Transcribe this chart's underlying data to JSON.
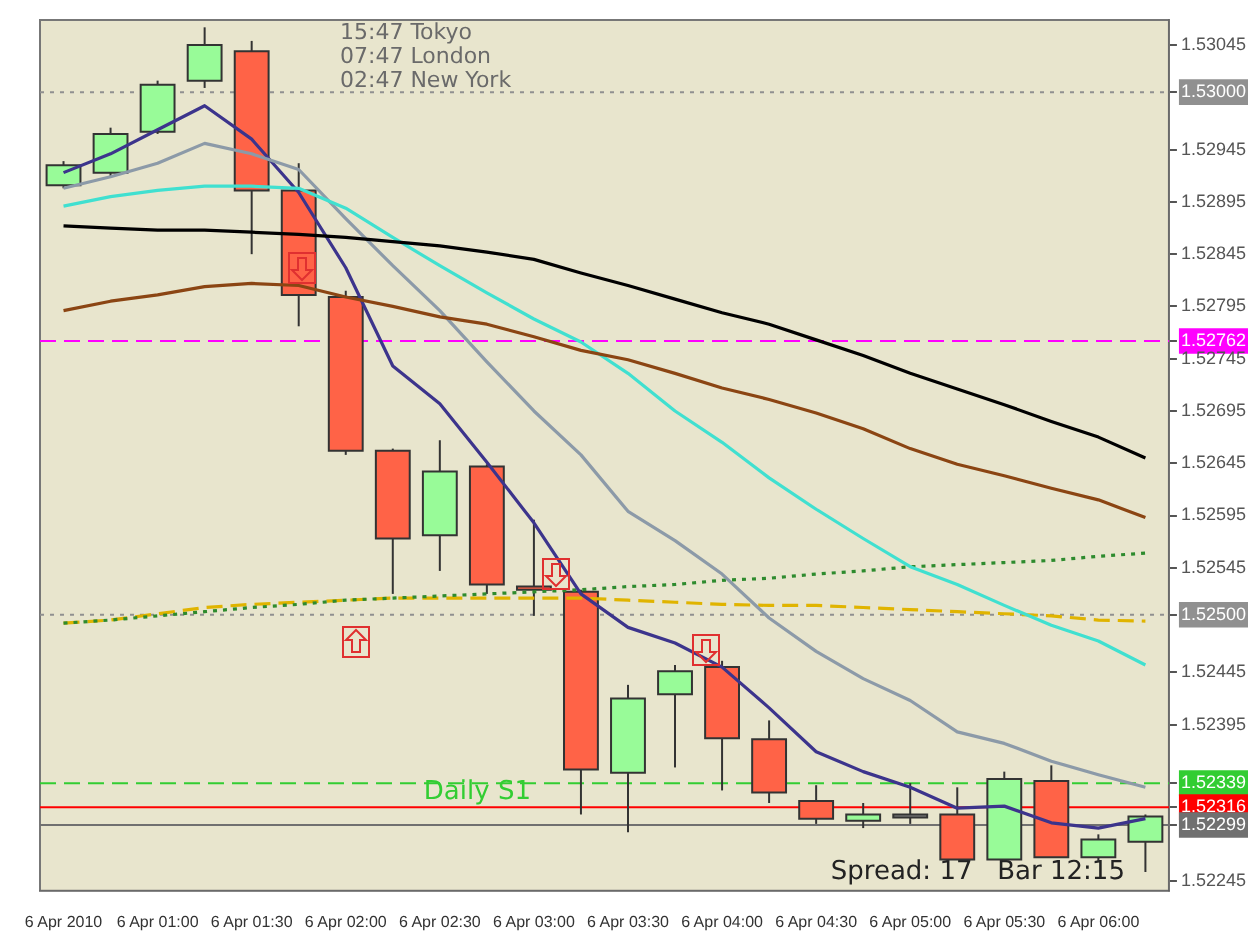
{
  "chart_data": {
    "type": "candlestick",
    "categories": [
      "6 Apr 2010",
      null,
      "6 Apr 01:00",
      null,
      "6 Apr 01:30",
      null,
      "6 Apr 02:00",
      null,
      "6 Apr 02:30",
      null,
      "6 Apr 03:00",
      null,
      "6 Apr 03:30",
      null,
      "6 Apr 04:00",
      null,
      "6 Apr 04:30",
      null,
      "6 Apr 05:00",
      null,
      "6 Apr 05:30",
      null,
      "6 Apr 06:00",
      null
    ],
    "ohlc": [
      [
        1.52911,
        1.52934,
        1.52908,
        1.5293
      ],
      [
        1.52923,
        1.52966,
        1.52919,
        1.5296
      ],
      [
        1.52962,
        1.53011,
        1.5296,
        1.53007
      ],
      [
        1.53011,
        1.53062,
        1.53004,
        1.53045
      ],
      [
        1.53039,
        1.53049,
        1.52845,
        1.52906
      ],
      [
        1.52906,
        1.52932,
        1.52776,
        1.52806
      ],
      [
        1.52804,
        1.5281,
        1.52653,
        1.52657
      ],
      [
        1.52657,
        1.52659,
        1.5252,
        1.52573
      ],
      [
        1.52576,
        1.52667,
        1.52542,
        1.52637
      ],
      [
        1.52642,
        1.52644,
        1.5252,
        1.52529
      ],
      [
        1.52527,
        1.52591,
        1.52499,
        1.52524
      ],
      [
        1.52522,
        1.52524,
        1.52309,
        1.52352
      ],
      [
        1.52349,
        1.52433,
        1.52292,
        1.5242
      ],
      [
        1.52424,
        1.52452,
        1.52354,
        1.52446
      ],
      [
        1.5245,
        1.52456,
        1.52332,
        1.52382
      ],
      [
        1.52381,
        1.52399,
        1.5232,
        1.5233
      ],
      [
        1.52322,
        1.52337,
        1.523,
        1.52305
      ],
      [
        1.52303,
        1.5232,
        1.52296,
        1.52309
      ],
      [
        1.52309,
        1.52339,
        1.523,
        1.52309
      ],
      [
        1.52309,
        1.52335,
        1.52266,
        1.52266
      ],
      [
        1.52266,
        1.5235,
        1.52266,
        1.52343
      ],
      [
        1.52341,
        1.52356,
        1.52268,
        1.52268
      ],
      [
        1.52268,
        1.5229,
        1.52264,
        1.52285
      ],
      [
        1.52283,
        1.52309,
        1.52254,
        1.52307
      ]
    ],
    "series": [
      {
        "type": "line",
        "color": "#000000",
        "values": [
          1.52872,
          1.5287,
          1.52868,
          1.52868,
          1.52866,
          1.52864,
          1.52861,
          1.52857,
          1.52853,
          1.52847,
          1.5284,
          1.52827,
          1.52815,
          1.52802,
          1.52789,
          1.52778,
          1.52763,
          1.52748,
          1.52731,
          1.52716,
          1.52701,
          1.52685,
          1.5267,
          1.5265
        ]
      },
      {
        "type": "line",
        "color": "#8b4513",
        "values": [
          1.52791,
          1.528,
          1.52806,
          1.52814,
          1.52817,
          1.52815,
          1.52804,
          1.52795,
          1.52785,
          1.52778,
          1.52766,
          1.52753,
          1.52744,
          1.52731,
          1.52717,
          1.52706,
          1.52693,
          1.52678,
          1.52659,
          1.52644,
          1.52633,
          1.52621,
          1.5261,
          1.52593
        ]
      },
      {
        "type": "line",
        "color": "#40e0d0",
        "values": [
          1.52891,
          1.529,
          1.52906,
          1.5291,
          1.5291,
          1.52908,
          1.52889,
          1.52861,
          1.52834,
          1.52808,
          1.52783,
          1.52761,
          1.52731,
          1.52695,
          1.52665,
          1.52631,
          1.52601,
          1.52573,
          1.52546,
          1.52529,
          1.52509,
          1.5249,
          1.52475,
          1.52452
        ]
      },
      {
        "type": "line",
        "color": "#8c9aa8",
        "values": [
          1.52908,
          1.52919,
          1.52932,
          1.52951,
          1.52941,
          1.52926,
          1.52879,
          1.52834,
          1.52791,
          1.52742,
          1.52695,
          1.52653,
          1.52599,
          1.52571,
          1.52539,
          1.52497,
          1.52465,
          1.52439,
          1.52418,
          1.52388,
          1.52377,
          1.5236,
          1.52347,
          1.52335
        ]
      },
      {
        "type": "line",
        "color": "#3c348c",
        "values": [
          1.52923,
          1.52941,
          1.52964,
          1.52987,
          1.52955,
          1.52904,
          1.52832,
          1.52738,
          1.52702,
          1.52646,
          1.52588,
          1.5252,
          1.52488,
          1.52473,
          1.5245,
          1.52411,
          1.52369,
          1.5235,
          1.52335,
          1.52315,
          1.52317,
          1.52301,
          1.52296,
          1.52305
        ]
      },
      {
        "type": "line",
        "color": "#2e8b2e",
        "line_style": "dotted",
        "values": [
          1.52492,
          1.52495,
          1.52499,
          1.52503,
          1.52507,
          1.5251,
          1.52514,
          1.52516,
          1.52518,
          1.5252,
          1.52522,
          1.52524,
          1.52527,
          1.52529,
          1.52533,
          1.52535,
          1.52539,
          1.52542,
          1.52546,
          1.52548,
          1.5255,
          1.52552,
          1.52556,
          1.52559
        ]
      },
      {
        "type": "line",
        "color": "#e0b400",
        "line_style": "dashed",
        "values": [
          1.52492,
          1.52495,
          1.52501,
          1.52507,
          1.5251,
          1.52512,
          1.52514,
          1.52516,
          1.52516,
          1.52516,
          1.52516,
          1.52516,
          1.52514,
          1.52512,
          1.5251,
          1.52509,
          1.52509,
          1.52507,
          1.52505,
          1.52503,
          1.52501,
          1.52499,
          1.52495,
          1.52494
        ]
      }
    ],
    "ref_lines": [
      {
        "axis": "y",
        "value": 1.53,
        "color": "#909090",
        "line_style": "dotted"
      },
      {
        "axis": "y",
        "value": 1.52762,
        "color": "#ff00ff",
        "line_style": "dashed"
      },
      {
        "axis": "y",
        "value": 1.525,
        "color": "#909090",
        "line_style": "dotted"
      },
      {
        "axis": "y",
        "value": 1.52339,
        "color": "#32cd32",
        "line_style": "dashed",
        "label": "Daily S1"
      },
      {
        "axis": "y",
        "value": 1.52316,
        "color": "#ff0000",
        "line_style": "solid"
      },
      {
        "axis": "y",
        "value": 1.52299,
        "color": "#707070",
        "line_style": "solid"
      }
    ],
    "ylim": [
      1.52236,
      1.53069
    ],
    "yticks": [
      1.53045,
      {
        "value": 1.53,
        "label": "1.53000"
      },
      1.52945,
      1.52895,
      1.52845,
      1.52795,
      1.52762,
      1.52745,
      1.52695,
      1.52645,
      1.52595,
      1.52545,
      {
        "value": 1.525,
        "label": "1.52500"
      },
      1.52445,
      1.52395,
      1.52339,
      1.52316,
      1.52299,
      1.52245
    ],
    "annotations": [
      "15:47 Tokyo",
      "07:47 London",
      "02:47 New York",
      "Spread: 17   Bar 12:15"
    ]
  }
}
